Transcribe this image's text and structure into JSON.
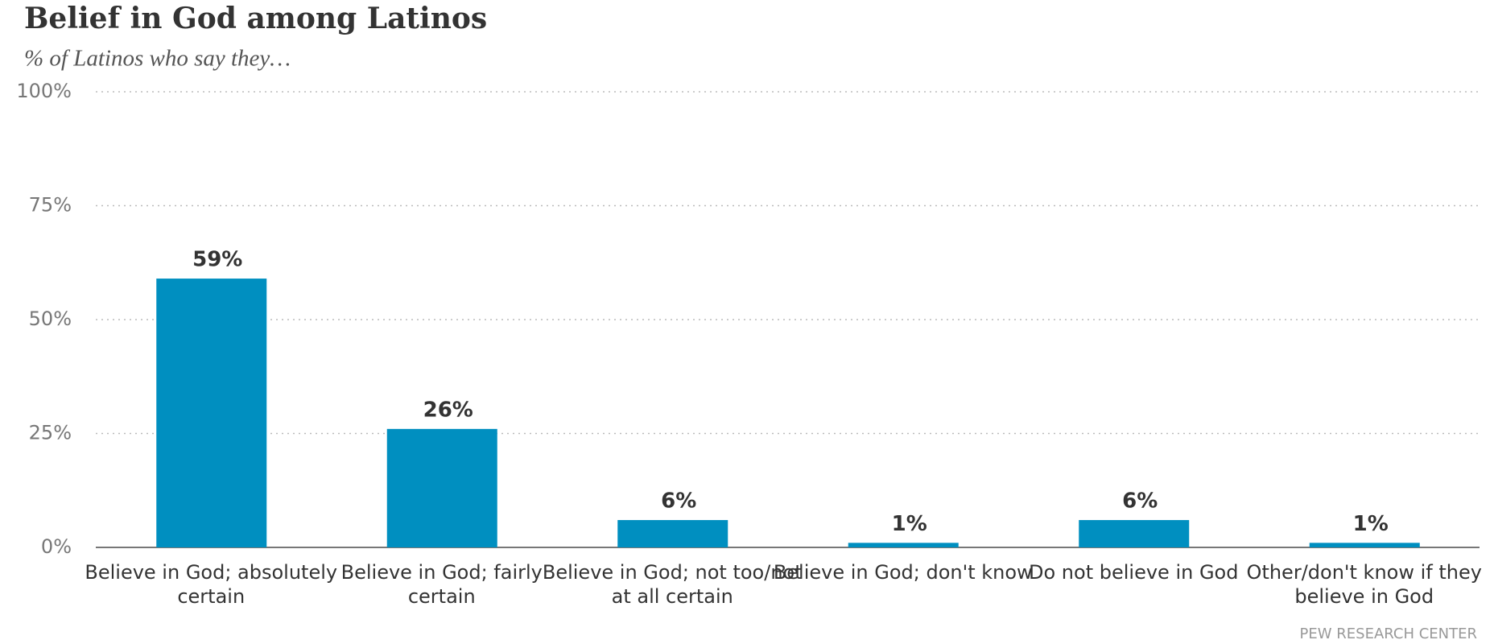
{
  "chart_data": {
    "type": "bar",
    "title": "Belief in God among Latinos",
    "subtitle": "% of Latinos who say they…",
    "categories": [
      "Believe in God; absolutely certain",
      "Believe in God; fairly certain",
      "Believe in God; not too/not at all certain",
      "Believe in God; don't know",
      "Do not believe in God",
      "Other/don't know if they believe in God"
    ],
    "values": [
      59,
      26,
      6,
      1,
      6,
      1
    ],
    "value_labels": [
      "59%",
      "26%",
      "6%",
      "1%",
      "6%",
      "1%"
    ],
    "color": "#008fc0",
    "ylim": [
      0,
      100
    ],
    "yticks": [
      {
        "value": 0,
        "label": "0%"
      },
      {
        "value": 25,
        "label": "25%"
      },
      {
        "value": 50,
        "label": "50%"
      },
      {
        "value": 75,
        "label": "75%"
      },
      {
        "value": 100,
        "label": "100%"
      }
    ],
    "grid": true,
    "source": "PEW RESEARCH CENTER"
  }
}
